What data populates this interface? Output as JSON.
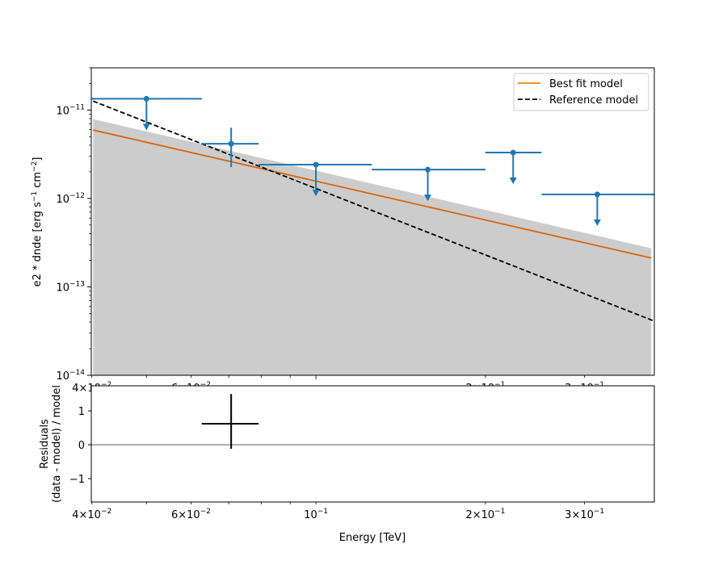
{
  "chart_data": [
    {
      "type": "scatter",
      "panel": "spectrum",
      "xscale": "log",
      "yscale": "log",
      "xlim": [
        0.0399,
        0.399
      ],
      "ylim": [
        1e-14,
        3e-11
      ],
      "xlabel": "",
      "ylabel": "e2 * dnde [erg s-1 cm-2]",
      "ylabel_parts": {
        "main": "e2 * dnde [erg",
        "s": "s",
        "exp1": "−1",
        "cm": "cm",
        "exp2": "−2",
        "close": "]"
      },
      "yticks": [
        {
          "value": 1e-11,
          "base": "10",
          "exp": "−11"
        },
        {
          "value": 1e-12,
          "base": "10",
          "exp": "−12"
        },
        {
          "value": 1e-13,
          "base": "10",
          "exp": "−13"
        },
        {
          "value": 1e-14,
          "base": "10",
          "exp": "−14"
        }
      ],
      "xticks": [
        {
          "value": 0.04,
          "base": "4×10",
          "exp": "−2"
        },
        {
          "value": 0.06,
          "base": "6×10",
          "exp": "−2"
        },
        {
          "value": 0.2,
          "base": "2×10",
          "exp": "−1"
        },
        {
          "value": 0.3,
          "base": "3×10",
          "exp": "−1"
        }
      ],
      "flux_points": {
        "color": "#1f77b4",
        "points": [
          {
            "x": 0.05,
            "xmin": 0.0399,
            "xmax": 0.0627,
            "y": 1.34e-11,
            "ul": true
          },
          {
            "x": 0.0707,
            "xmin": 0.0627,
            "xmax": 0.0791,
            "y": 4.15e-12,
            "ymin": 2.26e-12,
            "ymax": 6.3e-12,
            "ul": false
          },
          {
            "x": 0.1,
            "xmin": 0.0791,
            "xmax": 0.1256,
            "y": 2.41e-12,
            "ul": true
          },
          {
            "x": 0.158,
            "xmin": 0.1256,
            "xmax": 0.2,
            "y": 2.12e-12,
            "ul": true
          },
          {
            "x": 0.224,
            "xmin": 0.2,
            "xmax": 0.2516,
            "y": 3.3e-12,
            "ul": true
          },
          {
            "x": 0.316,
            "xmin": 0.2516,
            "xmax": 0.399,
            "y": 1.11e-12,
            "ul": true
          }
        ]
      },
      "series": [
        {
          "name": "Best fit model",
          "color": "#ff7f0e",
          "style": "solid",
          "x": [
            0.0402,
            0.394
          ],
          "y": [
            5.93e-12,
            2.12e-13
          ]
        },
        {
          "name": "Reference model",
          "color": "#000000",
          "style": "dashed",
          "x": [
            0.0402,
            0.397
          ],
          "y": [
            1.26e-11,
            4.15e-14
          ]
        }
      ],
      "error_band": {
        "color": "#cccccc",
        "x": [
          0.0402,
          0.394
        ],
        "upper": [
          7.9e-12,
          2.73e-13
        ],
        "lower": [
          1e-15,
          1e-15
        ]
      },
      "legend": {
        "placement": "top-right",
        "entries": [
          "Best fit model",
          "Reference model"
        ]
      }
    },
    {
      "type": "scatter",
      "panel": "residuals",
      "xscale": "log",
      "yscale": "linear",
      "xlim": [
        0.0399,
        0.399
      ],
      "ylim": [
        -1.69,
        1.74
      ],
      "xlabel": "Energy [TeV]",
      "ylabel_line1": "Residuals",
      "ylabel_line2": "(data - model) / model",
      "yticks": [
        "1",
        "0",
        "−1"
      ],
      "ytick_values": [
        1,
        0,
        -1
      ],
      "xticks": [
        {
          "value": 0.04,
          "base": "4×10",
          "exp": "−2"
        },
        {
          "value": 0.06,
          "base": "6×10",
          "exp": "−2"
        },
        {
          "value": 0.1,
          "base": "10",
          "exp": "−1"
        },
        {
          "value": 0.2,
          "base": "2×10",
          "exp": "−1"
        },
        {
          "value": 0.3,
          "base": "3×10",
          "exp": "−1"
        }
      ],
      "points": [
        {
          "x": 0.0707,
          "xmin": 0.0627,
          "xmax": 0.0791,
          "y": 0.62,
          "ymin": -0.12,
          "ymax": 1.5
        }
      ],
      "zero_line": 0
    }
  ]
}
